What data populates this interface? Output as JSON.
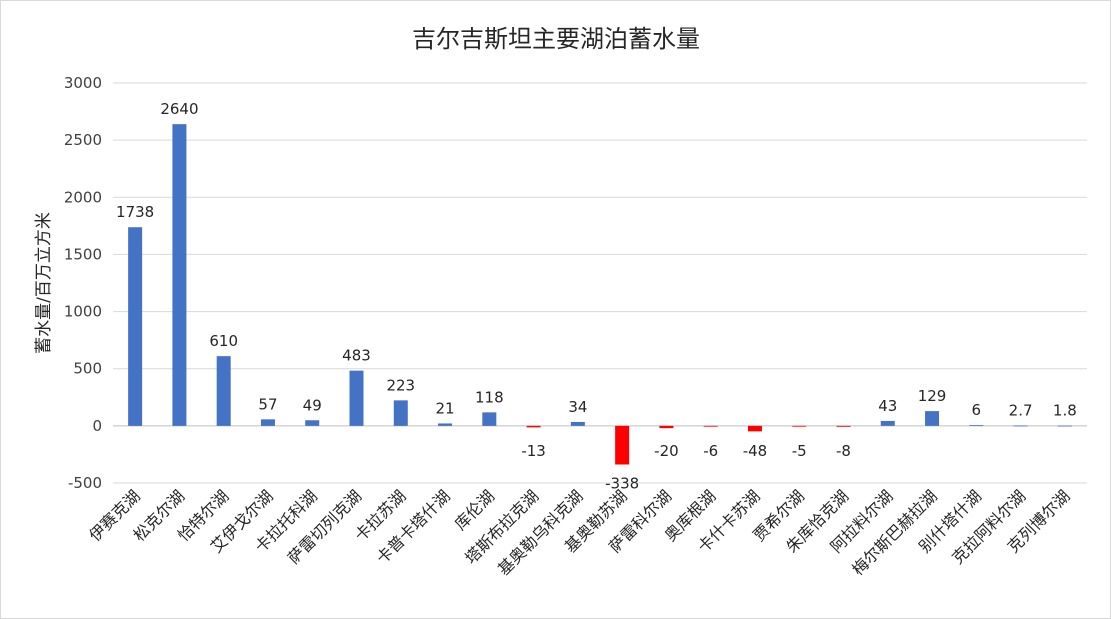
{
  "chart_data": {
    "type": "bar",
    "title": "吉尔吉斯坦主要湖泊蓄水量",
    "xlabel": "",
    "ylabel": "蓄水量/百万立方米",
    "ylim": [
      -500,
      3000
    ],
    "yticks": [
      -500,
      0,
      500,
      1000,
      1500,
      2000,
      2500,
      3000
    ],
    "grid": true,
    "legend": "none",
    "positive_color": "#4472c4",
    "negative_color": "#ff0000",
    "categories": [
      "伊赛克湖",
      "松克尔湖",
      "恰特尔湖",
      "艾伊戈尔湖",
      "卡拉托科湖",
      "萨雷切列克湖",
      "卡拉苏湖",
      "卡普卡塔什湖",
      "库伦湖",
      "塔斯布拉克湖",
      "基奥勒乌科克湖",
      "基奥勒苏湖",
      "萨雷科尔湖",
      "奥库根湖",
      "卡什卡苏湖",
      "贾希尔湖",
      "朱库恰克湖",
      "阿拉料尔湖",
      "梅尔斯巴赫拉湖",
      "别什塔什湖",
      "克拉阿料尔湖",
      "克列博尔湖"
    ],
    "values": [
      1738,
      2640,
      610,
      57,
      49,
      483,
      223,
      21,
      118,
      -13,
      34,
      -338,
      -20,
      -6,
      -48,
      -5,
      -8,
      43,
      129,
      6,
      2.7,
      1.8
    ],
    "data_labels": [
      "1738",
      "2640",
      "610",
      "57",
      "49",
      "483",
      "223",
      "21",
      "118",
      "-13",
      "34",
      "-338",
      "-20",
      "-6",
      "-48",
      "-5",
      "-8",
      "43",
      "129",
      "6",
      "2.7",
      "1.8"
    ]
  }
}
